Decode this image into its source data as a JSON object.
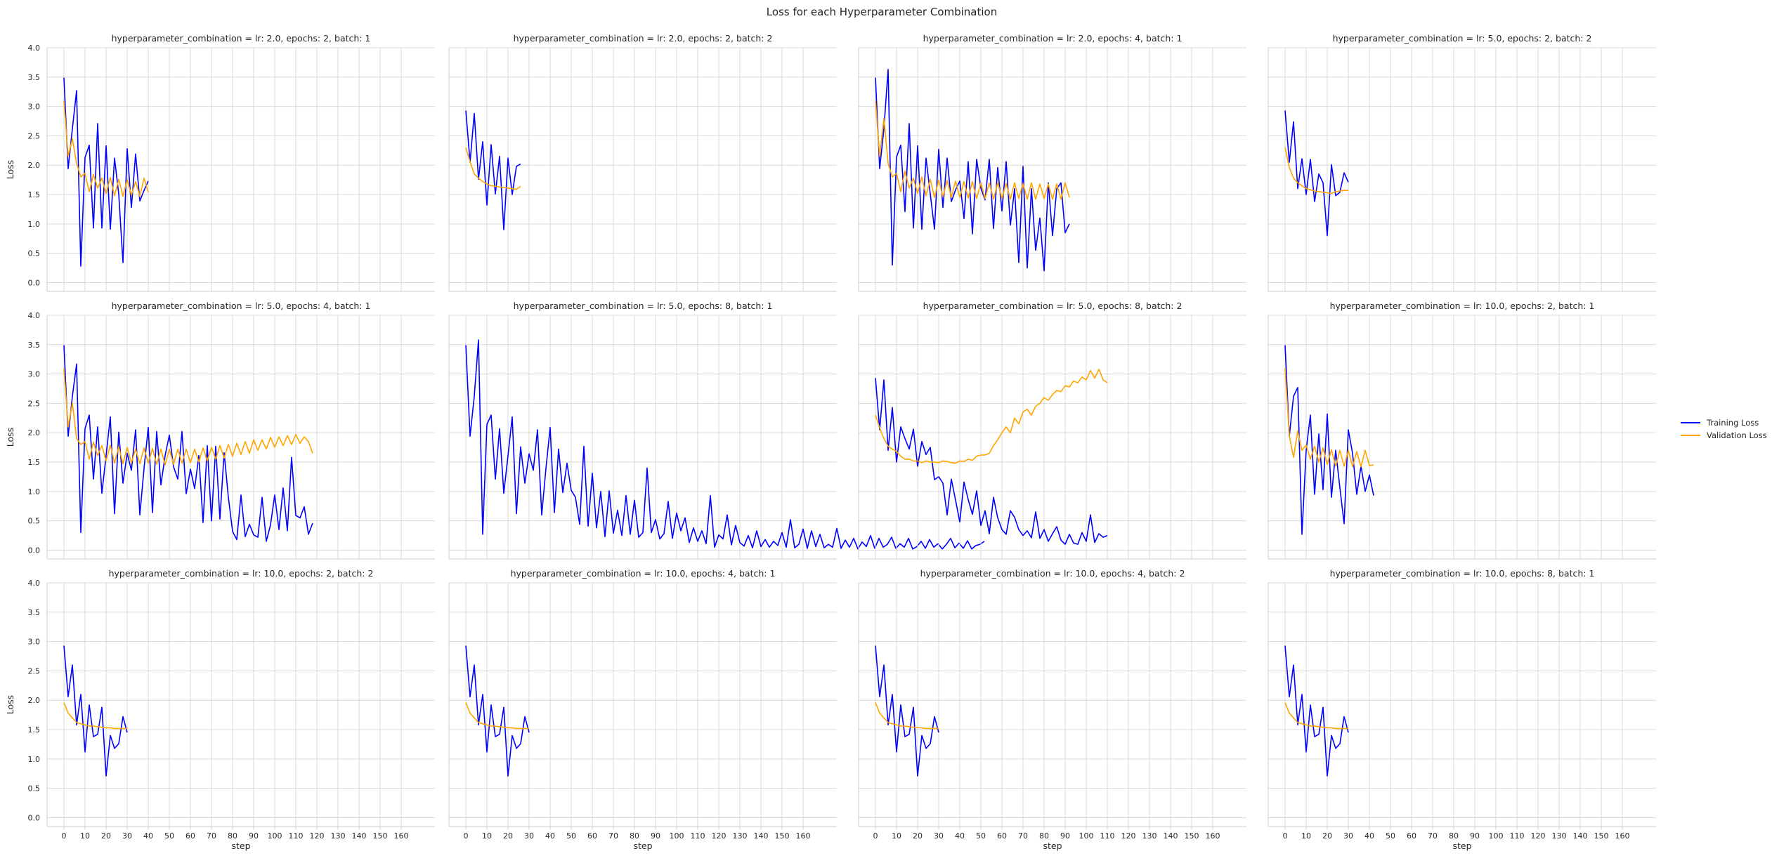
{
  "figure": {
    "title": "Loss for each Hyperparameter Combination",
    "xlabel": "step",
    "ylabel": "Loss"
  },
  "legend": {
    "placement": "right-center",
    "items": [
      {
        "label": "Training Loss",
        "color": "#0000ff"
      },
      {
        "label": "Validation Loss",
        "color": "#ffa500"
      }
    ]
  },
  "chart_data": {
    "type": "line",
    "xlim": [
      -8,
      176
    ],
    "ylim": [
      -0.15,
      4.0
    ],
    "xticks": [
      0,
      10,
      20,
      30,
      40,
      50,
      60,
      70,
      80,
      90,
      100,
      110,
      120,
      130,
      140,
      150,
      160
    ],
    "yticks": [
      0.0,
      0.5,
      1.0,
      1.5,
      2.0,
      2.5,
      3.0,
      3.5,
      4.0
    ],
    "grid": true,
    "series_colors": {
      "train": "#0000ff",
      "val": "#ffa500"
    },
    "panels": [
      {
        "title": "hyperparameter_combination = lr: 2.0, epochs: 2, batch: 1",
        "train": [
          3.49,
          1.94,
          2.62,
          3.27,
          0.28,
          2.13,
          2.34,
          0.93,
          2.71,
          0.93,
          2.33,
          0.91,
          2.12,
          1.51,
          0.34,
          2.28,
          1.28,
          2.19,
          1.39,
          1.57,
          1.73
        ],
        "val": [
          3.1,
          2.15,
          2.45,
          2.03,
          1.8,
          1.86,
          1.55,
          1.84,
          1.61,
          1.78,
          1.52,
          1.79,
          1.48,
          1.76,
          1.47,
          1.75,
          1.49,
          1.72,
          1.47,
          1.78,
          1.54
        ]
      },
      {
        "title": "hyperparameter_combination = lr: 2.0, epochs: 2, batch: 2",
        "train": [
          2.93,
          2.05,
          2.88,
          1.76,
          2.4,
          1.32,
          2.35,
          1.51,
          2.15,
          0.9,
          2.12,
          1.5,
          1.98,
          2.02
        ],
        "val": [
          2.3,
          2.06,
          1.85,
          1.78,
          1.72,
          1.68,
          1.65,
          1.64,
          1.63,
          1.62,
          1.61,
          1.6,
          1.59,
          1.64
        ]
      },
      {
        "title": "hyperparameter_combination = lr: 2.0, epochs: 4, batch: 1",
        "train": [
          3.49,
          1.94,
          2.62,
          3.63,
          0.3,
          2.14,
          2.34,
          1.21,
          2.71,
          0.93,
          2.33,
          0.91,
          2.12,
          1.51,
          0.91,
          2.27,
          1.28,
          2.12,
          1.38,
          1.58,
          1.73,
          1.09,
          2.06,
          0.83,
          2.1,
          1.61,
          1.41,
          2.1,
          0.92,
          1.96,
          1.22,
          2.06,
          0.98,
          1.6,
          0.34,
          1.98,
          0.25,
          1.6,
          0.55,
          1.1,
          0.2,
          1.7,
          0.8,
          1.6,
          1.7,
          0.85,
          1.0
        ],
        "val": [
          3.1,
          2.15,
          2.8,
          2.03,
          1.8,
          1.86,
          1.55,
          1.9,
          1.61,
          1.78,
          1.52,
          1.8,
          1.48,
          1.76,
          1.45,
          1.75,
          1.46,
          1.74,
          1.45,
          1.73,
          1.45,
          1.72,
          1.44,
          1.72,
          1.43,
          1.7,
          1.43,
          1.7,
          1.42,
          1.7,
          1.43,
          1.69,
          1.42,
          1.7,
          1.43,
          1.69,
          1.42,
          1.7,
          1.42,
          1.68,
          1.43,
          1.68,
          1.42,
          1.68,
          1.42,
          1.7,
          1.45
        ]
      },
      {
        "title": "hyperparameter_combination = lr: 5.0, epochs: 2, batch: 2",
        "train": [
          2.93,
          2.05,
          2.74,
          1.6,
          2.11,
          1.5,
          2.1,
          1.38,
          1.85,
          1.7,
          0.8,
          2.01,
          1.48,
          1.54,
          1.87,
          1.71
        ],
        "val": [
          2.3,
          1.96,
          1.78,
          1.7,
          1.65,
          1.6,
          1.58,
          1.56,
          1.55,
          1.54,
          1.53,
          1.52,
          1.55,
          1.56,
          1.57,
          1.57
        ]
      },
      {
        "title": "hyperparameter_combination = lr: 5.0, epochs: 4, batch: 1",
        "train": [
          3.49,
          1.94,
          2.62,
          3.17,
          0.3,
          2.07,
          2.3,
          1.21,
          2.1,
          0.97,
          1.61,
          2.27,
          0.62,
          2.01,
          1.14,
          1.65,
          1.36,
          2.05,
          0.6,
          1.39,
          2.09,
          0.64,
          2.02,
          1.11,
          1.61,
          1.96,
          1.42,
          1.21,
          2.02,
          0.96,
          1.38,
          1.05,
          1.61,
          0.47,
          1.78,
          0.5,
          1.77,
          0.53,
          1.66,
          0.9,
          0.32,
          0.18,
          0.94,
          0.23,
          0.44,
          0.26,
          0.22,
          0.9,
          0.15,
          0.43,
          0.94,
          0.35,
          1.06,
          0.33,
          1.58,
          0.59,
          0.55,
          0.74,
          0.27,
          0.46
        ],
        "val": [
          3.1,
          2.1,
          2.5,
          1.9,
          1.8,
          1.85,
          1.55,
          1.84,
          1.61,
          1.78,
          1.52,
          1.79,
          1.48,
          1.76,
          1.47,
          1.75,
          1.49,
          1.72,
          1.47,
          1.74,
          1.48,
          1.73,
          1.46,
          1.72,
          1.45,
          1.72,
          1.46,
          1.72,
          1.48,
          1.72,
          1.49,
          1.72,
          1.5,
          1.74,
          1.52,
          1.75,
          1.55,
          1.78,
          1.57,
          1.8,
          1.6,
          1.82,
          1.63,
          1.85,
          1.65,
          1.88,
          1.7,
          1.88,
          1.72,
          1.92,
          1.75,
          1.93,
          1.78,
          1.95,
          1.8,
          1.97,
          1.82,
          1.93,
          1.85,
          1.65
        ]
      },
      {
        "title": "hyperparameter_combination = lr: 5.0, epochs: 8, batch: 1",
        "train": [
          3.49,
          1.94,
          2.62,
          3.58,
          0.27,
          2.14,
          2.3,
          1.21,
          2.07,
          0.97,
          1.61,
          2.27,
          0.62,
          1.76,
          1.14,
          1.64,
          1.36,
          2.05,
          0.6,
          1.39,
          2.09,
          0.64,
          1.72,
          0.98,
          1.48,
          1.02,
          0.9,
          0.44,
          1.77,
          0.41,
          1.31,
          0.38,
          1.0,
          0.23,
          1.01,
          0.29,
          0.68,
          0.25,
          0.93,
          0.27,
          0.85,
          0.22,
          0.3,
          1.4,
          0.3,
          0.52,
          0.19,
          0.28,
          0.83,
          0.2,
          0.63,
          0.33,
          0.55,
          0.13,
          0.38,
          0.15,
          0.33,
          0.11,
          0.93,
          0.05,
          0.26,
          0.19,
          0.6,
          0.09,
          0.42,
          0.13,
          0.07,
          0.25,
          0.04,
          0.33,
          0.06,
          0.18,
          0.05,
          0.15,
          0.08,
          0.3,
          0.05,
          0.52,
          0.04,
          0.1,
          0.36,
          0.03,
          0.33,
          0.06,
          0.27,
          0.04,
          0.1,
          0.05,
          0.37,
          0.03,
          0.17,
          0.05,
          0.2,
          0.02,
          0.14,
          0.06,
          0.25,
          0.03,
          0.2,
          0.05,
          0.1,
          0.22,
          0.03,
          0.11,
          0.05,
          0.2,
          0.02,
          0.06,
          0.15,
          0.03,
          0.18,
          0.05,
          0.11,
          0.02,
          0.1,
          0.2,
          0.04,
          0.12,
          0.03,
          0.16,
          0.02,
          0.08,
          0.1,
          0.15
        ],
        "val": []
      },
      {
        "title": "hyperparameter_combination = lr: 5.0, epochs: 8, batch: 2",
        "train": [
          2.93,
          2.05,
          2.9,
          1.7,
          2.43,
          1.5,
          2.1,
          1.9,
          1.72,
          2.06,
          1.43,
          1.85,
          1.63,
          1.75,
          1.2,
          1.25,
          1.14,
          0.6,
          1.21,
          0.85,
          0.48,
          1.16,
          0.86,
          0.61,
          1.01,
          0.42,
          0.67,
          0.28,
          0.9,
          0.55,
          0.35,
          0.27,
          0.67,
          0.56,
          0.35,
          0.25,
          0.33,
          0.21,
          0.65,
          0.2,
          0.35,
          0.15,
          0.28,
          0.4,
          0.17,
          0.1,
          0.27,
          0.12,
          0.1,
          0.3,
          0.15,
          0.6,
          0.13,
          0.28,
          0.22,
          0.25
        ],
        "val": [
          2.3,
          2.08,
          1.9,
          1.77,
          1.72,
          1.68,
          1.6,
          1.55,
          1.55,
          1.52,
          1.52,
          1.49,
          1.52,
          1.5,
          1.5,
          1.49,
          1.52,
          1.51,
          1.49,
          1.48,
          1.52,
          1.51,
          1.55,
          1.53,
          1.6,
          1.62,
          1.62,
          1.65,
          1.78,
          1.88,
          2.0,
          2.1,
          2.0,
          2.25,
          2.15,
          2.35,
          2.4,
          2.3,
          2.45,
          2.5,
          2.6,
          2.55,
          2.65,
          2.72,
          2.7,
          2.8,
          2.78,
          2.88,
          2.85,
          2.95,
          2.9,
          3.06,
          2.93,
          3.08,
          2.9,
          2.85
        ]
      },
      {
        "title": "hyperparameter_combination = lr: 10.0, epochs: 2, batch: 1",
        "train": [
          3.49,
          1.94,
          2.62,
          2.77,
          0.27,
          1.7,
          2.3,
          0.95,
          1.98,
          1.03,
          2.32,
          0.9,
          1.7,
          1.06,
          0.45,
          2.05,
          1.65,
          0.95,
          1.43,
          1.0,
          1.28,
          0.93
        ],
        "val": [
          3.1,
          1.95,
          1.58,
          2.03,
          1.7,
          1.79,
          1.55,
          1.77,
          1.5,
          1.74,
          1.46,
          1.71,
          1.43,
          1.7,
          1.43,
          1.7,
          1.42,
          1.68,
          1.42,
          1.7,
          1.44,
          1.45
        ]
      },
      {
        "title": "hyperparameter_combination = lr: 10.0, epochs: 2, batch: 2",
        "train": [
          2.93,
          2.06,
          2.6,
          1.58,
          2.1,
          1.12,
          1.92,
          1.38,
          1.42,
          1.88,
          0.71,
          1.4,
          1.18,
          1.26,
          1.72,
          1.45
        ],
        "val": [
          1.96,
          1.78,
          1.7,
          1.62,
          1.6,
          1.58,
          1.56,
          1.56,
          1.55,
          1.54,
          1.53,
          1.53,
          1.52,
          1.52,
          1.52,
          1.52
        ]
      },
      {
        "title": "hyperparameter_combination = lr: 10.0, epochs: 4, batch: 1",
        "train": [
          2.93,
          2.06,
          2.6,
          1.58,
          2.1,
          1.12,
          1.92,
          1.38,
          1.42,
          1.88,
          0.71,
          1.4,
          1.18,
          1.26,
          1.72,
          1.45
        ],
        "val": [
          1.96,
          1.78,
          1.7,
          1.62,
          1.6,
          1.58,
          1.56,
          1.56,
          1.55,
          1.54,
          1.53,
          1.53,
          1.52,
          1.52,
          1.52,
          1.52
        ]
      },
      {
        "title": "hyperparameter_combination = lr: 10.0, epochs: 4, batch: 2",
        "train": [
          2.93,
          2.06,
          2.6,
          1.58,
          2.1,
          1.12,
          1.92,
          1.38,
          1.42,
          1.88,
          0.71,
          1.4,
          1.18,
          1.26,
          1.72,
          1.45
        ],
        "val": [
          1.96,
          1.78,
          1.7,
          1.62,
          1.6,
          1.58,
          1.56,
          1.56,
          1.55,
          1.54,
          1.53,
          1.53,
          1.52,
          1.52,
          1.52,
          1.52
        ]
      },
      {
        "title": "hyperparameter_combination = lr: 10.0, epochs: 8, batch: 1",
        "train": [
          2.93,
          2.06,
          2.6,
          1.58,
          2.1,
          1.12,
          1.92,
          1.38,
          1.42,
          1.88,
          0.71,
          1.4,
          1.18,
          1.26,
          1.72,
          1.45
        ],
        "val": [
          1.96,
          1.78,
          1.7,
          1.62,
          1.6,
          1.58,
          1.56,
          1.56,
          1.55,
          1.54,
          1.53,
          1.53,
          1.52,
          1.52,
          1.52,
          1.52
        ]
      }
    ]
  }
}
